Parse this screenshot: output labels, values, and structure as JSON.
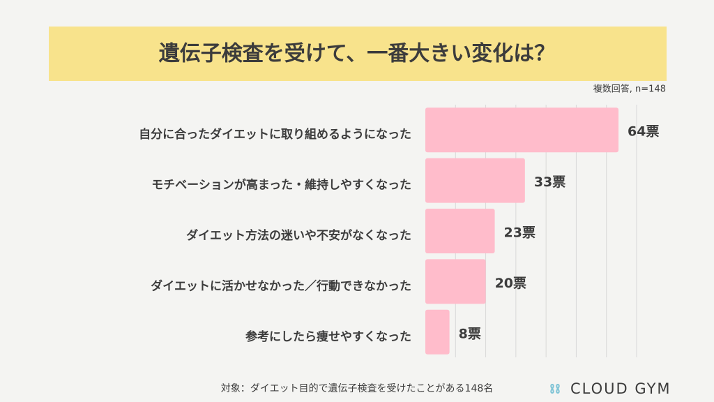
{
  "chart_data": {
    "type": "barh",
    "title": "遺伝子検査を受けて、一番大きい変化は？",
    "note": "複数回答, n=148",
    "categories": [
      "自分に合ったダイエットに取り組めるようになった",
      "モチベーションが高まった・維持しやすくなった",
      "ダイエット方法の迷いや不安がなくなった",
      "ダイエットに活かせなかった／行動できなかった",
      "参考にしたら痩せやすくなった"
    ],
    "values": [
      64,
      33,
      23,
      20,
      8
    ],
    "value_labels": [
      "64票",
      "33票",
      "23票",
      "20票",
      "8票"
    ],
    "color": "#ffbccb",
    "xlim": [
      0,
      70
    ],
    "xticks": [
      10,
      20,
      30,
      40,
      50,
      60,
      70
    ],
    "grid": true,
    "footnote": "対象：ダイエット目的で遺伝子検査を受けたことがある148名",
    "brand": "CLOUD GYM"
  }
}
